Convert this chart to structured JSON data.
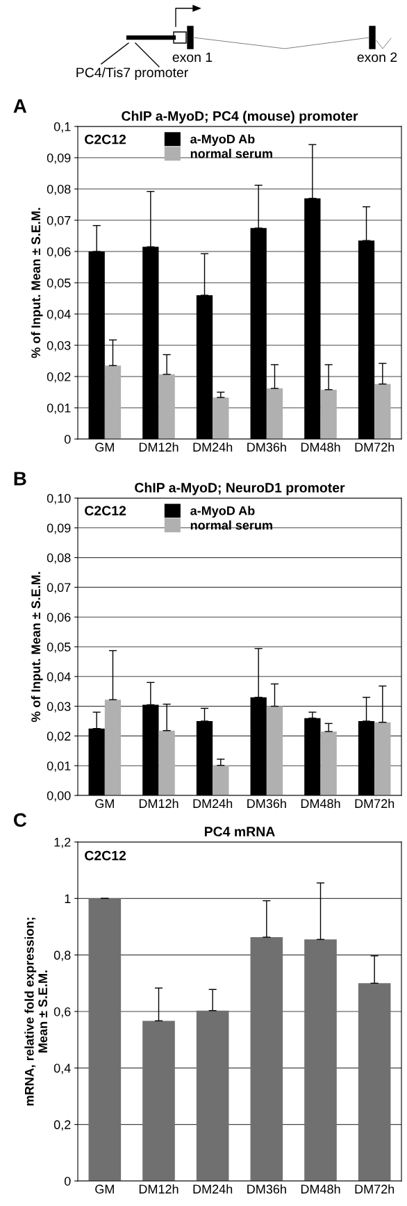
{
  "chart_data": [
    {
      "type": "other",
      "annotations": [
        "exon 1",
        "exon 2",
        "PC4/Tis7 promoter"
      ]
    },
    {
      "type": "bar",
      "title": "ChIP a-MyoD; PC4 (mouse) promoter",
      "ylabel": "% of Input. Mean ± S.E.M.",
      "annotations": [
        "A",
        "C2C12"
      ],
      "categories": [
        "GM",
        "DM12h",
        "DM24h",
        "DM36h",
        "DM48h",
        "DM72h"
      ],
      "series": [
        {
          "name": "a-MyoD Ab",
          "color": "#000000",
          "values": [
            0.06,
            0.0615,
            0.046,
            0.0675,
            0.077,
            0.0635
          ],
          "errors": [
            [
              0.06,
              0.0683
            ],
            [
              0.0615,
              0.0792
            ],
            [
              0.046,
              0.0593
            ],
            [
              0.0675,
              0.0812
            ],
            [
              0.077,
              0.0942
            ],
            [
              0.0635,
              0.0743
            ]
          ]
        },
        {
          "name": "normal serum",
          "color": "#b0b0b0",
          "values": [
            0.0235,
            0.0207,
            0.0133,
            0.0162,
            0.0158,
            0.0176
          ],
          "errors": [
            [
              0.0235,
              0.0317
            ],
            [
              0.0207,
              0.027
            ],
            [
              0.0133,
              0.015
            ],
            [
              0.0162,
              0.0238
            ],
            [
              0.0158,
              0.0238
            ],
            [
              0.0176,
              0.0242
            ]
          ]
        }
      ],
      "ylim": [
        0,
        0.1
      ],
      "yticks": [
        0,
        {
          "value": 0.01,
          "label": "0,01"
        },
        {
          "value": 0.02,
          "label": "0,02"
        },
        {
          "value": 0.03,
          "label": "0,03"
        },
        {
          "value": 0.04,
          "label": "0,04"
        },
        {
          "value": 0.05,
          "label": "0,05"
        },
        {
          "value": 0.06,
          "label": "0,06"
        },
        {
          "value": 0.07,
          "label": "0,07"
        },
        {
          "value": 0.08,
          "label": "0,08"
        },
        {
          "value": 0.09,
          "label": "0,09"
        },
        {
          "value": 0.1,
          "label": "0,1"
        }
      ],
      "grid": "y",
      "legend": "top"
    },
    {
      "type": "bar",
      "title": "ChIP a-MyoD; NeuroD1 promoter",
      "ylabel": "% of Input. Mean ± S.E.M.",
      "annotations": [
        "B",
        "C2C12"
      ],
      "categories": [
        "GM",
        "DM12h",
        "DM24h",
        "DM36h",
        "DM48h",
        "DM72h"
      ],
      "series": [
        {
          "name": "a-MyoD Ab",
          "color": "#000000",
          "values": [
            0.0225,
            0.0305,
            0.025,
            0.033,
            0.026,
            0.025
          ],
          "errors": [
            [
              0.0225,
              0.028
            ],
            [
              0.0305,
              0.038
            ],
            [
              0.025,
              0.0293
            ],
            [
              0.033,
              0.0494
            ],
            [
              0.026,
              0.028
            ],
            [
              0.025,
              0.033
            ]
          ]
        },
        {
          "name": "normal serum",
          "color": "#b0b0b0",
          "values": [
            0.0322,
            0.0218,
            0.0101,
            0.03,
            0.0215,
            0.0246
          ],
          "errors": [
            [
              0.0322,
              0.0487
            ],
            [
              0.0218,
              0.0307
            ],
            [
              0.0101,
              0.0122
            ],
            [
              0.03,
              0.0375
            ],
            [
              0.0215,
              0.0242
            ],
            [
              0.0246,
              0.0368
            ]
          ]
        }
      ],
      "ylim": [
        0,
        0.1
      ],
      "yticks": [
        {
          "value": 0,
          "label": "0,00"
        },
        {
          "value": 0.01,
          "label": "0,01"
        },
        {
          "value": 0.02,
          "label": "0,02"
        },
        {
          "value": 0.03,
          "label": "0,03"
        },
        {
          "value": 0.04,
          "label": "0,04"
        },
        {
          "value": 0.05,
          "label": "0,05"
        },
        {
          "value": 0.06,
          "label": "0,06"
        },
        {
          "value": 0.07,
          "label": "0,07"
        },
        {
          "value": 0.08,
          "label": "0,08"
        },
        {
          "value": 0.09,
          "label": "0,09"
        },
        {
          "value": 0.1,
          "label": "0,10"
        }
      ],
      "grid": "y",
      "legend": "top"
    },
    {
      "type": "bar",
      "title": "PC4 mRNA",
      "ylabel": "mRNA, relative fold expression;\nMean ± S.E.M.",
      "annotations": [
        "C",
        "C2C12"
      ],
      "categories": [
        "GM",
        "DM12h",
        "DM24h",
        "DM36h",
        "DM48h",
        "DM72h"
      ],
      "series": [
        {
          "color": "#707070",
          "values": [
            1.0,
            0.567,
            0.603,
            0.863,
            0.855,
            0.7
          ],
          "errors": [
            [
              1.0,
              1.0
            ],
            [
              0.567,
              0.683
            ],
            [
              0.603,
              0.678
            ],
            [
              0.863,
              0.992
            ],
            [
              0.855,
              1.055
            ],
            [
              0.7,
              0.797
            ]
          ]
        }
      ],
      "ylim": [
        0,
        1.2
      ],
      "yticks": [
        0,
        {
          "value": 0.2,
          "label": "0,2"
        },
        {
          "value": 0.4,
          "label": "0,4"
        },
        {
          "value": 0.6,
          "label": "0,6"
        },
        {
          "value": 0.8,
          "label": "0,8"
        },
        1,
        {
          "value": 1.2,
          "label": "1,2"
        }
      ],
      "grid": "y"
    }
  ]
}
